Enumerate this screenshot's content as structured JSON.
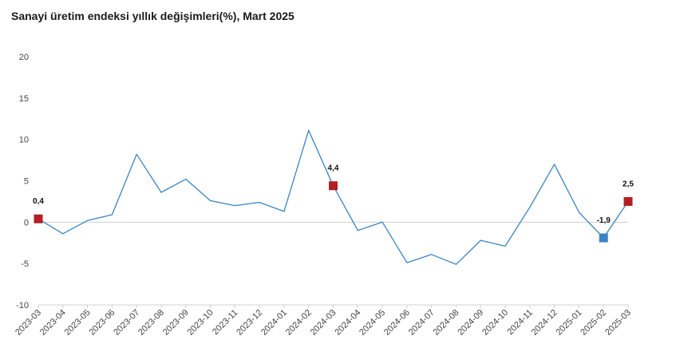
{
  "chart_data": {
    "type": "line",
    "title": "Sanayi üretim endeksi yıllık değişimleri(%), Mart 2025",
    "xlabel": "",
    "ylabel": "",
    "ylim": [
      -10,
      20
    ],
    "yticks": [
      "20",
      "15",
      "10",
      "5",
      "0",
      "-5",
      "-10"
    ],
    "ytick_values": [
      20,
      15,
      10,
      5,
      0,
      -5,
      -10
    ],
    "grid": false,
    "legend": "none",
    "categories": [
      "2023-03",
      "2023-04",
      "2023-05",
      "2023-06",
      "2023-07",
      "2023-08",
      "2023-09",
      "2023-10",
      "2023-11",
      "2023-12",
      "2024-01",
      "2024-02",
      "2024-03",
      "2024-04",
      "2024-05",
      "2024-06",
      "2024-07",
      "2024-08",
      "2024-09",
      "2024-10",
      "2024-11",
      "2024-12",
      "2025-01",
      "2025-02",
      "2025-03"
    ],
    "series": [
      {
        "values": [
          0.4,
          -1.4,
          0.2,
          0.9,
          8.2,
          3.6,
          5.2,
          2.6,
          2.0,
          2.4,
          1.3,
          11.1,
          4.4,
          -1.0,
          0.0,
          -4.9,
          -3.9,
          -5.1,
          -2.2,
          -2.9,
          1.8,
          7.0,
          1.2,
          -1.9,
          2.5
        ],
        "color": "#3b84c4"
      }
    ],
    "markers": [
      {
        "index": 0,
        "label": "0,4",
        "color": "#b21f24",
        "label_pos": "above"
      },
      {
        "index": 12,
        "label": "4,4",
        "color": "#b21f24",
        "label_pos": "above"
      },
      {
        "index": 23,
        "label": "-1,9",
        "color": "#3b84c4",
        "label_pos": "above"
      },
      {
        "index": 24,
        "label": "2,5",
        "color": "#b21f24",
        "label_pos": "above"
      }
    ],
    "axis_color": "#d0d0d0"
  }
}
